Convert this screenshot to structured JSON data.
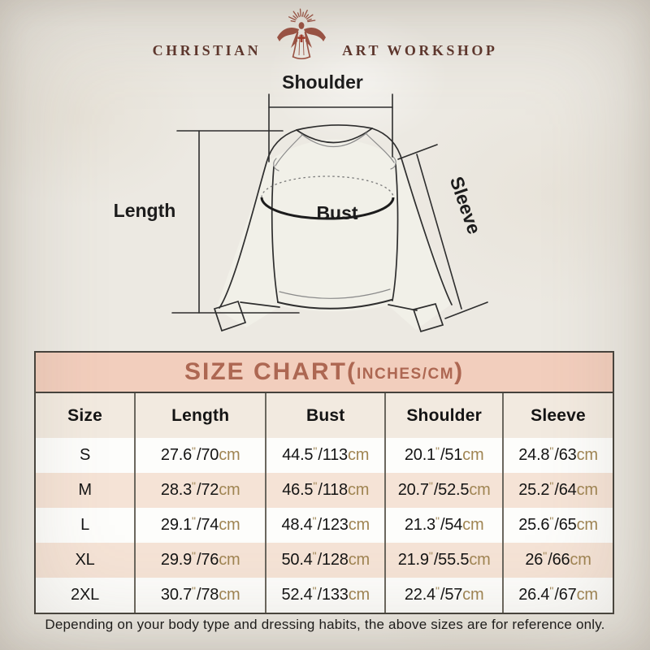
{
  "brand": {
    "name_left": "CHRISTIAN",
    "name_right": "ART WORKSHOP",
    "logo_color": "#9c5243",
    "cross_color": "#a63a2a"
  },
  "diagram": {
    "labels": {
      "shoulder": "Shoulder",
      "length": "Length",
      "bust": "Bust",
      "sleeve": "Sleeve"
    }
  },
  "size_chart": {
    "title_main": "SIZE CHART(",
    "title_sub": "INCHES/CM",
    "title_close": ")",
    "banner_bg": "#f2cebd",
    "banner_text_color": "#ad6752",
    "alt_row_color": "#f5e3d6",
    "unit_color": "#a08553",
    "unit_inch": "\"",
    "unit_cm": "cm",
    "columns": [
      "Size",
      "Length",
      "Bust",
      "Shoulder",
      "Sleeve"
    ],
    "rows": [
      {
        "size": "S",
        "length": {
          "in": "27.6",
          "cm": "70"
        },
        "bust": {
          "in": "44.5",
          "cm": "113"
        },
        "shoulder": {
          "in": "20.1",
          "cm": "51"
        },
        "sleeve": {
          "in": "24.8",
          "cm": "63"
        }
      },
      {
        "size": "M",
        "length": {
          "in": "28.3",
          "cm": "72"
        },
        "bust": {
          "in": "46.5",
          "cm": "118"
        },
        "shoulder": {
          "in": "20.7",
          "cm": "52.5"
        },
        "sleeve": {
          "in": "25.2",
          "cm": "64"
        }
      },
      {
        "size": "L",
        "length": {
          "in": "29.1",
          "cm": "74"
        },
        "bust": {
          "in": "48.4",
          "cm": "123"
        },
        "shoulder": {
          "in": "21.3",
          "cm": "54"
        },
        "sleeve": {
          "in": "25.6",
          "cm": "65"
        }
      },
      {
        "size": "XL",
        "length": {
          "in": "29.9",
          "cm": "76"
        },
        "bust": {
          "in": "50.4",
          "cm": "128"
        },
        "shoulder": {
          "in": "21.9",
          "cm": "55.5"
        },
        "sleeve": {
          "in": "26",
          "cm": "66"
        }
      },
      {
        "size": "2XL",
        "length": {
          "in": "30.7",
          "cm": "78"
        },
        "bust": {
          "in": "52.4",
          "cm": "133"
        },
        "shoulder": {
          "in": "22.4",
          "cm": "57"
        },
        "sleeve": {
          "in": "26.4",
          "cm": "67"
        }
      }
    ]
  },
  "footer": {
    "note": "Depending on your body type and dressing habits, the above sizes are for reference only."
  }
}
